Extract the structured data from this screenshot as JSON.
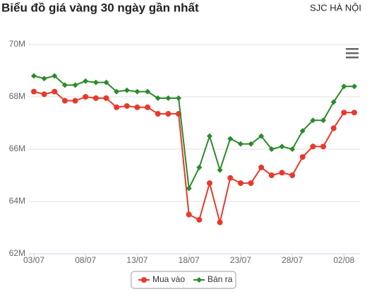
{
  "chart_data": {
    "type": "line",
    "title": "Biểu đồ giá vàng 30 ngày gần nhất",
    "subtitle": "SJC HÀ NỘI",
    "categories": [
      "03/07",
      null,
      null,
      null,
      null,
      "08/07",
      null,
      null,
      null,
      null,
      "13/07",
      null,
      null,
      null,
      null,
      "18/07",
      null,
      null,
      null,
      null,
      "23/07",
      null,
      null,
      null,
      null,
      "28/07",
      null,
      null,
      null,
      null,
      "02/08",
      null
    ],
    "series": [
      {
        "name": "Mua vào",
        "color": "#e8392b",
        "marker": "circle",
        "values": [
          68.2,
          68.1,
          68.2,
          67.85,
          67.85,
          68.0,
          67.95,
          67.95,
          67.6,
          67.65,
          67.6,
          67.6,
          67.35,
          67.35,
          67.35,
          63.5,
          63.3,
          64.7,
          63.2,
          64.9,
          64.7,
          64.7,
          65.3,
          65.0,
          65.1,
          65.0,
          65.7,
          66.1,
          66.1,
          66.8,
          67.4,
          67.4
        ]
      },
      {
        "name": "Bán ra",
        "color": "#2a8a2a",
        "marker": "diamond",
        "values": [
          68.8,
          68.7,
          68.8,
          68.45,
          68.45,
          68.6,
          68.55,
          68.55,
          68.2,
          68.25,
          68.2,
          68.2,
          67.95,
          67.95,
          67.95,
          64.5,
          65.3,
          66.5,
          65.2,
          66.4,
          66.2,
          66.2,
          66.5,
          66.0,
          66.1,
          66.0,
          66.7,
          67.1,
          67.1,
          67.8,
          68.4,
          68.4
        ]
      }
    ],
    "ylim": [
      62,
      70
    ],
    "yticks": [
      {
        "value": 62,
        "label": "62M"
      },
      {
        "value": 64,
        "label": "64M"
      },
      {
        "value": 66,
        "label": "66M"
      },
      {
        "value": 68,
        "label": "68M"
      },
      {
        "value": 70,
        "label": "70M"
      }
    ],
    "grid": true,
    "legend": "bottom"
  }
}
